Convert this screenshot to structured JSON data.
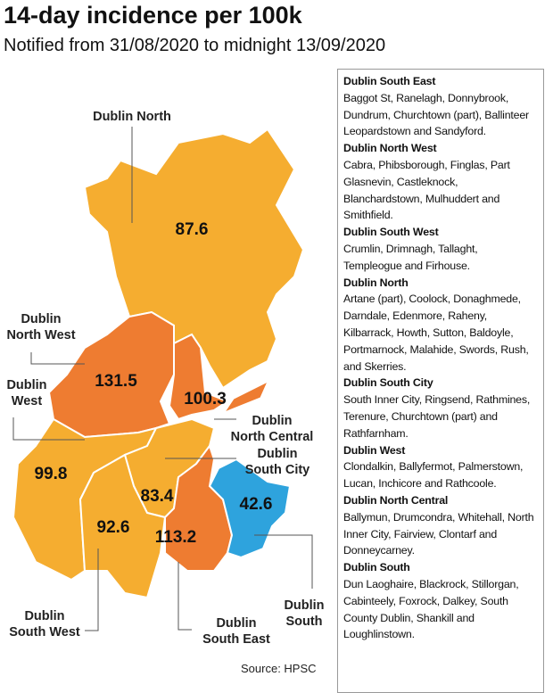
{
  "header": {
    "title": "14-day incidence per 100k",
    "subtitle": "Notified from 31/08/2020 to midnight 13/09/2020"
  },
  "regions": [
    {
      "label_lines": [
        "Dublin North"
      ],
      "value": 87.6
    },
    {
      "label_lines": [
        "Dublin",
        "North West"
      ],
      "value": 131.5
    },
    {
      "label_lines": [
        "Dublin",
        "North Central"
      ],
      "value": 100.3
    },
    {
      "label_lines": [
        "Dublin",
        "West"
      ],
      "value": 99.8
    },
    {
      "label_lines": [
        "Dublin",
        "South City"
      ],
      "value": 83.4
    },
    {
      "label_lines": [
        "Dublin",
        "South West"
      ],
      "value": 92.6
    },
    {
      "label_lines": [
        "Dublin",
        "South East"
      ],
      "value": 113.2
    },
    {
      "label_lines": [
        "Dublin",
        "South"
      ],
      "value": 42.6
    }
  ],
  "legend": [
    {
      "title": "Dublin South East",
      "text": "Baggot St, Ranelagh, Donnybrook, Dundrum, Churchtown (part), Ballinteer Leopardstown and Sandyford."
    },
    {
      "title": "Dublin North West",
      "text": "Cabra, Phibsborough, Finglas, Part Glasnevin, Castleknock, Blanchardstown, Mulhuddert and Smithfield."
    },
    {
      "title": "Dublin South West",
      "text": "Crumlin, Drimnagh, Tallaght, Templeogue and Firhouse."
    },
    {
      "title": "Dublin North",
      "text": "Artane (part), Coolock, Donaghmede, Darndale, Edenmore, Raheny, Kilbarrack, Howth, Sutton, Baldoyle, Portmarnock, Malahide, Swords, Rush, and Skerries."
    },
    {
      "title": "Dublin South City",
      "text": "South Inner City, Ringsend, Rathmines, Terenure, Churchtown (part) and Rathfarnham."
    },
    {
      "title": "Dublin West",
      "text": "Clondalkin, Ballyfermot, Palmerstown, Lucan, Inchicore and Rathcoole."
    },
    {
      "title": "Dublin North Central",
      "text": "Ballymun, Drumcondra, Whitehall, North Inner City, Fairview, Clontarf and Donneycarney."
    },
    {
      "title": "Dublin South",
      "text": "Dun Laoghaire, Blackrock, Stillorgan, Cabinteely, Foxrock, Dalkey, South County Dublin, Shankill and Loughlinstown."
    }
  ],
  "source": "Source: HPSC"
}
